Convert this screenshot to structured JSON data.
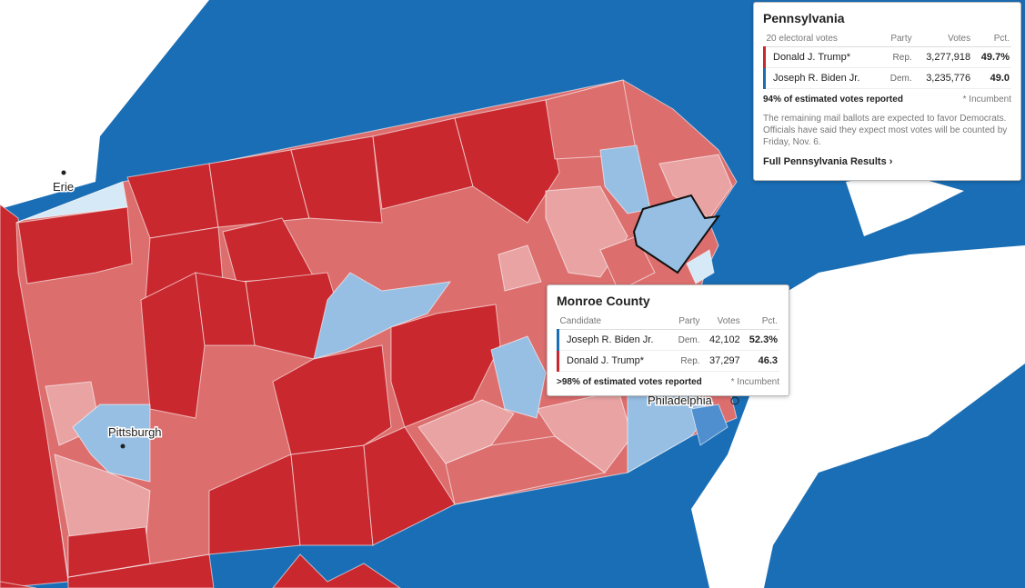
{
  "map": {
    "labels": [
      "Erie",
      "Pittsburgh",
      "Philadelphia"
    ]
  },
  "state_panel": {
    "title": "Pennsylvania",
    "header": [
      "20 electoral votes",
      "Party",
      "Votes",
      "Pct."
    ],
    "rows": [
      [
        "Donald J. Trump*",
        "Rep.",
        "3,277,918",
        "49.7%"
      ],
      [
        "Joseph R. Biden Jr.",
        "Dem.",
        "3,235,776",
        "49.0"
      ]
    ],
    "reported": "94% of estimated votes reported",
    "incumbent_note": "* Incumbent",
    "note": "The remaining mail ballots are expected to favor Democrats. Officials have said they expect most votes will be counted by Friday, Nov. 6.",
    "link": "Full Pennsylvania Results ›"
  },
  "county_tooltip": {
    "title": "Monroe County",
    "header": [
      "Candidate",
      "Party",
      "Votes",
      "Pct."
    ],
    "rows": [
      [
        "Joseph R. Biden Jr.",
        "Dem.",
        "42,102",
        "52.3%"
      ],
      [
        "Donald J. Trump*",
        "Rep.",
        "37,297",
        "46.3"
      ]
    ],
    "reported": ">98% of estimated votes reported",
    "incumbent_note": "* Incumbent"
  }
}
